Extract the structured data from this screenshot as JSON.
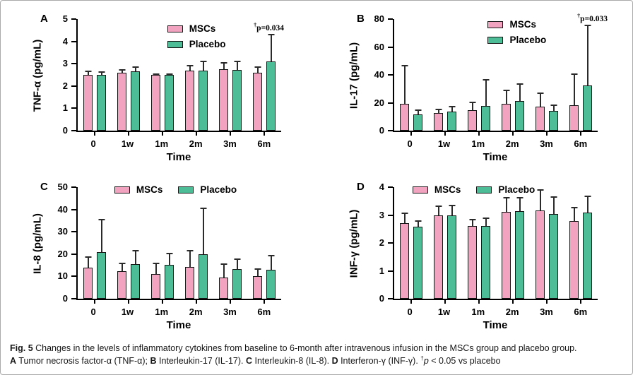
{
  "figure": {
    "caption": {
      "fig_label": "Fig. 5",
      "line1": " Changes in the levels of inflammatory cytokines from baseline to 6-month after intravenous infusion in the MSCs group and placebo group.",
      "a_label": "A",
      "a_text": " Tumor necrosis factor-α (TNF-α); ",
      "b_label": "B",
      "b_text": " Interleukin-17 (IL-17). ",
      "c_label": "C",
      "c_text": " Interleukin-8 (IL-8). ",
      "d_label": "D",
      "d_text": " Interferon-γ (INF-γ). ",
      "dagger": "†",
      "p": "p",
      "note": " < 0.05 vs placebo"
    }
  },
  "colors": {
    "mscs_pink": "#F2A3BF",
    "placebo_green": "#4CBD96",
    "axis": "#000000",
    "error_bar": "#2a2a2a"
  },
  "chart_data": [
    {
      "type": "bar",
      "panel": "A",
      "title": "",
      "ylabel": "TNF-α (pg/mL)",
      "xlabel": "Time",
      "ylim": [
        0,
        5
      ],
      "yticks": [
        0,
        1,
        2,
        3,
        4,
        5
      ],
      "grid": "off",
      "legend_position": "inside-top-center",
      "legend_orientation": "vertical",
      "categories": [
        "0",
        "1w",
        "1m",
        "2m",
        "3m",
        "6m"
      ],
      "series": [
        {
          "name": "MSCs",
          "color": "#F2A3BF",
          "values": [
            2.5,
            2.6,
            2.5,
            2.7,
            2.75,
            2.6
          ],
          "error_tops": [
            2.68,
            2.75,
            2.56,
            2.93,
            3.08,
            2.87
          ]
        },
        {
          "name": "Placebo",
          "color": "#4CBD96",
          "values": [
            2.5,
            2.67,
            2.5,
            2.68,
            2.73,
            3.1
          ],
          "error_tops": [
            2.65,
            2.89,
            2.55,
            3.13,
            3.13,
            4.35
          ]
        }
      ],
      "annotation_dagger": "†",
      "annotation_text": "p=0.034"
    },
    {
      "type": "bar",
      "panel": "B",
      "title": "",
      "ylabel": "IL-17 (pg/mL)",
      "xlabel": "Time",
      "ylim": [
        0,
        80
      ],
      "yticks": [
        0,
        20,
        40,
        60,
        80
      ],
      "grid": "off",
      "legend_position": "inside-top-center",
      "legend_orientation": "vertical",
      "categories": [
        "0",
        "1w",
        "1m",
        "2m",
        "3m",
        "6m"
      ],
      "series": [
        {
          "name": "MSCs",
          "color": "#F2A3BF",
          "values": [
            19.3,
            12.6,
            14.5,
            19.2,
            17.1,
            18.4
          ],
          "error_tops": [
            47,
            15.6,
            21,
            29.5,
            27.4,
            41.2
          ]
        },
        {
          "name": "Placebo",
          "color": "#4CBD96",
          "values": [
            11.7,
            13.6,
            17.6,
            21.2,
            14.2,
            32.6
          ],
          "error_tops": [
            15.2,
            17.9,
            37.2,
            34,
            19,
            75.9
          ]
        }
      ],
      "annotation_dagger": "†",
      "annotation_text": "p=0.033"
    },
    {
      "type": "bar",
      "panel": "C",
      "title": "",
      "ylabel": "IL-8 (pg/mL)",
      "xlabel": "Time",
      "ylim": [
        0,
        50
      ],
      "yticks": [
        0,
        10,
        20,
        30,
        40,
        50
      ],
      "grid": "off",
      "legend_position": "inside-top-left",
      "legend_orientation": "horizontal",
      "categories": [
        "0",
        "1w",
        "1m",
        "2m",
        "3m",
        "6m"
      ],
      "series": [
        {
          "name": "MSCs",
          "color": "#F2A3BF",
          "values": [
            14,
            12.5,
            11.2,
            14.2,
            9.5,
            10
          ],
          "error_tops": [
            18.9,
            16,
            16.1,
            21.9,
            15.7,
            13.6
          ]
        },
        {
          "name": "Placebo",
          "color": "#4CBD96",
          "values": [
            21,
            15.5,
            15.2,
            20,
            13.3,
            13
          ],
          "error_tops": [
            35.8,
            22,
            20.6,
            40.9,
            18.1,
            19.5
          ]
        }
      ]
    },
    {
      "type": "bar",
      "panel": "D",
      "title": "",
      "ylabel": "INF-γ (pg/mL)",
      "xlabel": "Time",
      "ylim": [
        0,
        4
      ],
      "yticks": [
        0,
        1,
        2,
        3,
        4
      ],
      "grid": "off",
      "legend_position": "inside-top-left",
      "legend_orientation": "horizontal",
      "categories": [
        "0",
        "1w",
        "1m",
        "2m",
        "3m",
        "6m"
      ],
      "series": [
        {
          "name": "MSCs",
          "color": "#F2A3BF",
          "values": [
            2.7,
            3.0,
            2.62,
            3.12,
            3.17,
            2.78
          ],
          "error_tops": [
            3.1,
            3.35,
            2.87,
            3.65,
            3.92,
            3.3
          ]
        },
        {
          "name": "Placebo",
          "color": "#4CBD96",
          "values": [
            2.58,
            2.98,
            2.62,
            3.15,
            3.03,
            3.1
          ],
          "error_tops": [
            2.82,
            3.38,
            2.92,
            3.65,
            3.68,
            3.7
          ]
        }
      ]
    }
  ]
}
